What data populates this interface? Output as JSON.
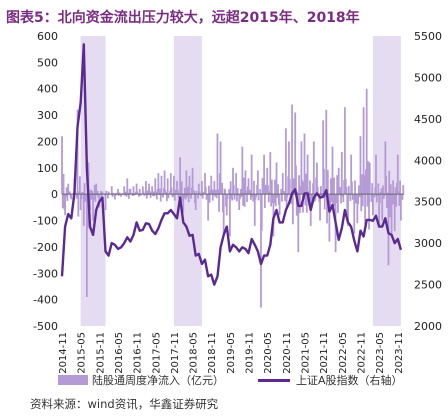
{
  "title": "图表5：北向资金流出压力较大，远超2015年、2018年",
  "source": "资料来源：wind资讯，华鑫证券研究",
  "colors": {
    "bars": "#b59bd6",
    "line": "#5b2a91",
    "shade": "#e6dcf1",
    "zero_line": "#666666",
    "title": "#7b2c83"
  },
  "chart_data": {
    "type": "bar+line",
    "x_ticks": [
      "2014-11",
      "2015-05",
      "2015-11",
      "2016-05",
      "2016-11",
      "2017-05",
      "2017-11",
      "2018-05",
      "2018-11",
      "2019-05",
      "2019-11",
      "2020-05",
      "2020-11",
      "2021-05",
      "2021-11",
      "2022-05",
      "2022-11",
      "2023-05",
      "2023-11"
    ],
    "y_left": {
      "min": -500,
      "max": 600,
      "ticks": [
        600,
        500,
        400,
        300,
        200,
        100,
        0,
        -100,
        -200,
        -300,
        -400,
        -500
      ]
    },
    "y_right": {
      "min": 2000,
      "max": 5500,
      "ticks": [
        5500,
        5000,
        4500,
        4000,
        3500,
        3000,
        2500,
        2000
      ],
      "label": "右轴"
    },
    "shaded_periods": [
      {
        "start": "2015-05",
        "end": "2016-01"
      },
      {
        "start": "2017-11",
        "end": "2018-08"
      },
      {
        "start": "2023-03",
        "end": "2023-12"
      }
    ],
    "series": [
      {
        "name": "陆股通周度净流入（亿元）",
        "type": "bar",
        "axis": "left",
        "points": [
          [
            "2014-11",
            220
          ],
          [
            "2014-12",
            -80
          ],
          [
            "2015-01",
            40
          ],
          [
            "2015-02",
            -20
          ],
          [
            "2015-03",
            60
          ],
          [
            "2015-04",
            320
          ],
          [
            "2015-05",
            -60
          ],
          [
            "2015-06",
            -120
          ],
          [
            "2015-07",
            -390
          ],
          [
            "2015-08",
            -60
          ],
          [
            "2015-09",
            -100
          ],
          [
            "2015-10",
            40
          ],
          [
            "2015-11",
            -50
          ],
          [
            "2015-12",
            10
          ],
          [
            "2016-01",
            -60
          ],
          [
            "2016-02",
            10
          ],
          [
            "2016-03",
            30
          ],
          [
            "2016-04",
            -20
          ],
          [
            "2016-05",
            20
          ],
          [
            "2016-06",
            -10
          ],
          [
            "2016-07",
            30
          ],
          [
            "2016-08",
            60
          ],
          [
            "2016-09",
            20
          ],
          [
            "2016-10",
            30
          ],
          [
            "2016-11",
            40
          ],
          [
            "2016-12",
            20
          ],
          [
            "2017-01",
            30
          ],
          [
            "2017-02",
            50
          ],
          [
            "2017-03",
            40
          ],
          [
            "2017-04",
            30
          ],
          [
            "2017-05",
            60
          ],
          [
            "2017-06",
            80
          ],
          [
            "2017-07",
            70
          ],
          [
            "2017-08",
            90
          ],
          [
            "2017-09",
            60
          ],
          [
            "2017-10",
            80
          ],
          [
            "2017-11",
            70
          ],
          [
            "2017-12",
            50
          ],
          [
            "2018-01",
            140
          ],
          [
            "2018-02",
            -70
          ],
          [
            "2018-03",
            90
          ],
          [
            "2018-04",
            70
          ],
          [
            "2018-05",
            100
          ],
          [
            "2018-06",
            -60
          ],
          [
            "2018-07",
            40
          ],
          [
            "2018-08",
            50
          ],
          [
            "2018-09",
            80
          ],
          [
            "2018-10",
            -100
          ],
          [
            "2018-11",
            70
          ],
          [
            "2018-12",
            50
          ],
          [
            "2019-01",
            230
          ],
          [
            "2019-02",
            200
          ],
          [
            "2019-03",
            -150
          ],
          [
            "2019-04",
            -80
          ],
          [
            "2019-05",
            -160
          ],
          [
            "2019-06",
            100
          ],
          [
            "2019-07",
            80
          ],
          [
            "2019-08",
            -60
          ],
          [
            "2019-09",
            180
          ],
          [
            "2019-10",
            90
          ],
          [
            "2019-11",
            60
          ],
          [
            "2019-12",
            150
          ],
          [
            "2020-01",
            -120
          ],
          [
            "2020-02",
            90
          ],
          [
            "2020-03",
            -430
          ],
          [
            "2020-04",
            150
          ],
          [
            "2020-05",
            100
          ],
          [
            "2020-06",
            160
          ],
          [
            "2020-07",
            -160
          ],
          [
            "2020-08",
            120
          ],
          [
            "2020-09",
            -80
          ],
          [
            "2020-10",
            80
          ],
          [
            "2020-11",
            250
          ],
          [
            "2020-12",
            200
          ],
          [
            "2021-01",
            340
          ],
          [
            "2021-02",
            310
          ],
          [
            "2021-03",
            -220
          ],
          [
            "2021-04",
            200
          ],
          [
            "2021-05",
            230
          ],
          [
            "2021-06",
            150
          ],
          [
            "2021-07",
            -120
          ],
          [
            "2021-08",
            200
          ],
          [
            "2021-09",
            120
          ],
          [
            "2021-10",
            -100
          ],
          [
            "2021-11",
            280
          ],
          [
            "2021-12",
            320
          ],
          [
            "2022-01",
            -180
          ],
          [
            "2022-02",
            180
          ],
          [
            "2022-03",
            -220
          ],
          [
            "2022-04",
            100
          ],
          [
            "2022-05",
            160
          ],
          [
            "2022-06",
            330
          ],
          [
            "2022-07",
            -120
          ],
          [
            "2022-08",
            150
          ],
          [
            "2022-09",
            -150
          ],
          [
            "2022-10",
            -110
          ],
          [
            "2022-11",
            220
          ],
          [
            "2022-12",
            330
          ],
          [
            "2023-01",
            400
          ],
          [
            "2023-02",
            120
          ],
          [
            "2023-03",
            -80
          ],
          [
            "2023-04",
            150
          ],
          [
            "2023-05",
            -120
          ],
          [
            "2023-06",
            -100
          ],
          [
            "2023-07",
            200
          ],
          [
            "2023-08",
            -270
          ],
          [
            "2023-09",
            -150
          ],
          [
            "2023-10",
            -140
          ],
          [
            "2023-11",
            150
          ],
          [
            "2023-12",
            -100
          ]
        ]
      },
      {
        "name": "上证A股指数（右轴）",
        "type": "line",
        "axis": "right",
        "points": [
          [
            "2014-11",
            2600
          ],
          [
            "2014-12",
            3200
          ],
          [
            "2015-01",
            3350
          ],
          [
            "2015-02",
            3300
          ],
          [
            "2015-03",
            3600
          ],
          [
            "2015-04",
            4400
          ],
          [
            "2015-05",
            4700
          ],
          [
            "2015-06",
            5400
          ],
          [
            "2015-07",
            3900
          ],
          [
            "2015-08",
            3200
          ],
          [
            "2015-09",
            3100
          ],
          [
            "2015-10",
            3400
          ],
          [
            "2015-11",
            3500
          ],
          [
            "2015-12",
            3550
          ],
          [
            "2016-01",
            2900
          ],
          [
            "2016-02",
            2850
          ],
          [
            "2016-03",
            3000
          ],
          [
            "2016-04",
            2980
          ],
          [
            "2016-05",
            2930
          ],
          [
            "2016-06",
            2950
          ],
          [
            "2016-07",
            3000
          ],
          [
            "2016-08",
            3070
          ],
          [
            "2016-09",
            3020
          ],
          [
            "2016-10",
            3100
          ],
          [
            "2016-11",
            3250
          ],
          [
            "2016-12",
            3150
          ],
          [
            "2017-01",
            3160
          ],
          [
            "2017-02",
            3240
          ],
          [
            "2017-03",
            3230
          ],
          [
            "2017-04",
            3150
          ],
          [
            "2017-05",
            3110
          ],
          [
            "2017-06",
            3180
          ],
          [
            "2017-07",
            3280
          ],
          [
            "2017-08",
            3360
          ],
          [
            "2017-09",
            3360
          ],
          [
            "2017-10",
            3400
          ],
          [
            "2017-11",
            3350
          ],
          [
            "2017-12",
            3300
          ],
          [
            "2018-01",
            3550
          ],
          [
            "2018-02",
            3250
          ],
          [
            "2018-03",
            3200
          ],
          [
            "2018-04",
            3090
          ],
          [
            "2018-05",
            3100
          ],
          [
            "2018-06",
            2850
          ],
          [
            "2018-07",
            2870
          ],
          [
            "2018-08",
            2750
          ],
          [
            "2018-09",
            2800
          ],
          [
            "2018-10",
            2600
          ],
          [
            "2018-11",
            2620
          ],
          [
            "2018-12",
            2500
          ],
          [
            "2019-01",
            2600
          ],
          [
            "2019-02",
            2950
          ],
          [
            "2019-03",
            3100
          ],
          [
            "2019-04",
            3200
          ],
          [
            "2019-05",
            2900
          ],
          [
            "2019-06",
            2980
          ],
          [
            "2019-07",
            2950
          ],
          [
            "2019-08",
            2900
          ],
          [
            "2019-09",
            2950
          ],
          [
            "2019-10",
            2930
          ],
          [
            "2019-11",
            2880
          ],
          [
            "2019-12",
            3050
          ],
          [
            "2020-01",
            2980
          ],
          [
            "2020-02",
            2900
          ],
          [
            "2020-03",
            2750
          ],
          [
            "2020-04",
            2850
          ],
          [
            "2020-05",
            2850
          ],
          [
            "2020-06",
            2980
          ],
          [
            "2020-07",
            3300
          ],
          [
            "2020-08",
            3400
          ],
          [
            "2020-09",
            3250
          ],
          [
            "2020-10",
            3250
          ],
          [
            "2020-11",
            3400
          ],
          [
            "2020-12",
            3480
          ],
          [
            "2021-01",
            3600
          ],
          [
            "2021-02",
            3650
          ],
          [
            "2021-03",
            3450
          ],
          [
            "2021-04",
            3450
          ],
          [
            "2021-05",
            3600
          ],
          [
            "2021-06",
            3600
          ],
          [
            "2021-07",
            3400
          ],
          [
            "2021-08",
            3550
          ],
          [
            "2021-09",
            3600
          ],
          [
            "2021-10",
            3550
          ],
          [
            "2021-11",
            3560
          ],
          [
            "2021-12",
            3640
          ],
          [
            "2022-01",
            3380
          ],
          [
            "2022-02",
            3460
          ],
          [
            "2022-03",
            3250
          ],
          [
            "2022-04",
            3040
          ],
          [
            "2022-05",
            3180
          ],
          [
            "2022-06",
            3400
          ],
          [
            "2022-07",
            3250
          ],
          [
            "2022-08",
            3200
          ],
          [
            "2022-09",
            3030
          ],
          [
            "2022-10",
            2900
          ],
          [
            "2022-11",
            3150
          ],
          [
            "2022-12",
            3080
          ],
          [
            "2023-01",
            3280
          ],
          [
            "2023-02",
            3280
          ],
          [
            "2023-03",
            3270
          ],
          [
            "2023-04",
            3330
          ],
          [
            "2023-05",
            3200
          ],
          [
            "2023-06",
            3200
          ],
          [
            "2023-07",
            3300
          ],
          [
            "2023-08",
            3120
          ],
          [
            "2023-09",
            3100
          ],
          [
            "2023-10",
            3000
          ],
          [
            "2023-11",
            3050
          ],
          [
            "2023-12",
            2920
          ]
        ]
      }
    ]
  }
}
